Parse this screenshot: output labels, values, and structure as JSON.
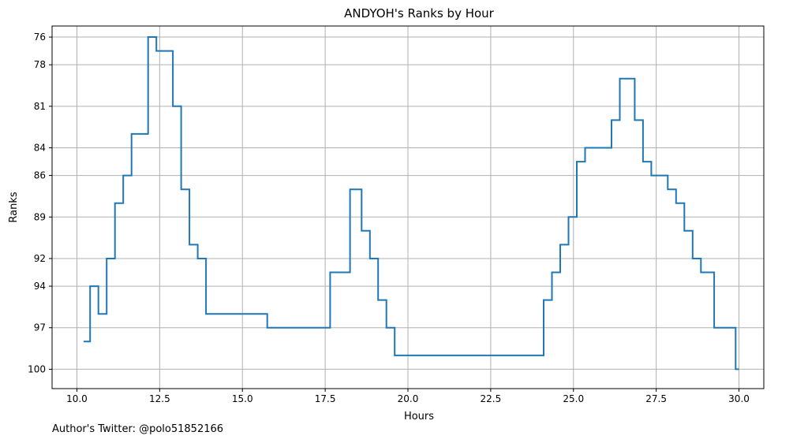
{
  "chart_data": {
    "type": "line",
    "title": "ANDYOH's Ranks by Hour",
    "xlabel": "Hours",
    "ylabel": "Ranks",
    "xlim": [
      9.25,
      30.75
    ],
    "ylim": [
      101.4,
      75.2
    ],
    "y_inverted": true,
    "grid": true,
    "line_color": "#1f77b4",
    "step": "post",
    "x_ticks": [
      10.0,
      12.5,
      15.0,
      17.5,
      20.0,
      22.5,
      25.0,
      27.5,
      30.0
    ],
    "x_tick_labels": [
      "10.0",
      "12.5",
      "15.0",
      "17.5",
      "20.0",
      "22.5",
      "25.0",
      "27.5",
      "30.0"
    ],
    "y_ticks": [
      76,
      78,
      81,
      84,
      86,
      89,
      92,
      94,
      97,
      100
    ],
    "y_tick_labels": [
      "76",
      "78",
      "81",
      "84",
      "86",
      "89",
      "92",
      "94",
      "97",
      "100"
    ],
    "x": [
      10.2,
      10.4,
      10.65,
      10.9,
      11.15,
      11.4,
      11.65,
      12.15,
      12.4,
      12.9,
      13.15,
      13.4,
      13.65,
      13.9,
      15.75,
      17.65,
      18.25,
      18.6,
      18.85,
      19.1,
      19.35,
      19.6,
      24.1,
      24.35,
      24.6,
      24.85,
      25.1,
      25.35,
      26.15,
      26.4,
      26.85,
      27.1,
      27.35,
      27.85,
      28.1,
      28.35,
      28.6,
      28.85,
      29.25,
      29.9,
      30.0
    ],
    "y": [
      98,
      94,
      96,
      92,
      88,
      86,
      83,
      76,
      77,
      81,
      87,
      91,
      92,
      96,
      97,
      93,
      87,
      90,
      92,
      95,
      97,
      99,
      95,
      93,
      91,
      89,
      85,
      84,
      82,
      79,
      82,
      85,
      86,
      87,
      88,
      90,
      92,
      93,
      97,
      100,
      100
    ]
  },
  "footer": {
    "text": "Author's Twitter: @polo51852166"
  }
}
